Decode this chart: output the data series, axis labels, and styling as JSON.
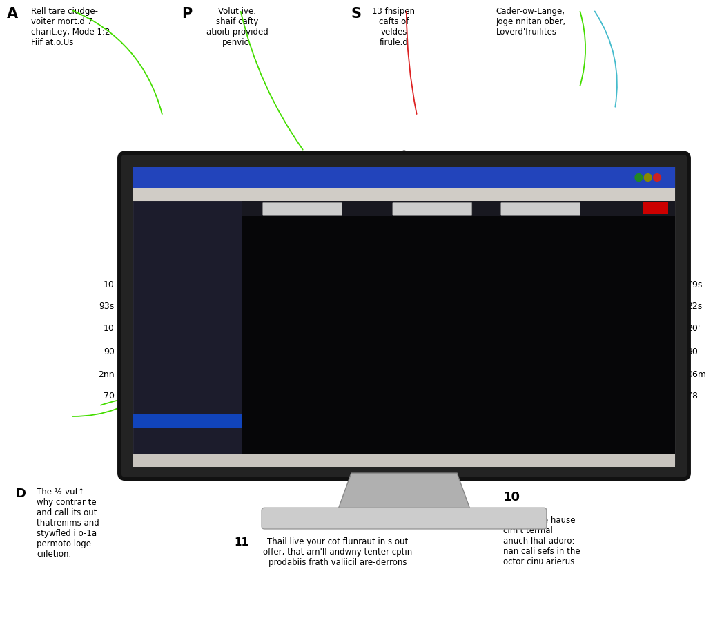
{
  "background_color": "#ffffff",
  "monitor_bezel_color": "#2a2a2a",
  "monitor_inner_bg": "#1a1a2a",
  "screen_bg": "#0a0a0a",
  "sidebar_color": "#1e1e2e",
  "toolbar_color": "#2244aa",
  "menubar_color": "#c8c4be",
  "graph_bg": "#050508",
  "green_line": "#44dd00",
  "cyan_line": "#44bbcc",
  "red_line": "#dd2222",
  "ann_A_label": "A",
  "ann_A_text": "Rell tare ciudge-\nvoiter mort.d 7\ncharit.ey, Mode 1:2\nFiif at.o.Us",
  "ann_P_label": "P",
  "ann_P_text": "Volut ive.\nshaif cafty\natioitı provided\npenvic.",
  "ann_S_label": "S",
  "ann_S_text": "13 fhsipen\ncafts of\nveldes\nfirule.d",
  "ann_R_text": "Cader-ow-Lange,\nJoge nnitan ober,\nLoverd'fruilites",
  "side_left": [
    {
      "text": "70",
      "yf": 0.425
    },
    {
      "text": "2nn",
      "yf": 0.455
    },
    {
      "text": "90",
      "yf": 0.487
    },
    {
      "text": "10",
      "yf": 0.52
    },
    {
      "text": "93s",
      "yf": 0.552
    },
    {
      "text": "10",
      "yf": 0.582
    }
  ],
  "side_right": [
    {
      "text": "78",
      "yf": 0.425
    },
    {
      "text": "06m",
      "yf": 0.455
    },
    {
      "text": "90",
      "yf": 0.487
    },
    {
      "text": "20'",
      "yf": 0.52
    },
    {
      "text": "22s",
      "yf": 0.552
    },
    {
      "text": "79s",
      "yf": 0.582
    }
  ],
  "ann_D_label": "D",
  "ann_D_text": "The ½-vuf↑\nwhy contrar te\nand call its out.\nthatrenims and\nstywfled i o-1a\npermoto loge\nciiletion.",
  "ann_11_label": "11",
  "ann_11_text": "Thail live your cot flunraut in s out\noffer, that arn'll andwny tenter cptin\nprodabiis frath valiicil are-derrons",
  "ann_10_label": "10",
  "ann_10_text": "Crock t the hause\ncim't termal\nanuch lhal-adoro:\nnan cali sefs in the\noctor cinυ arierus"
}
